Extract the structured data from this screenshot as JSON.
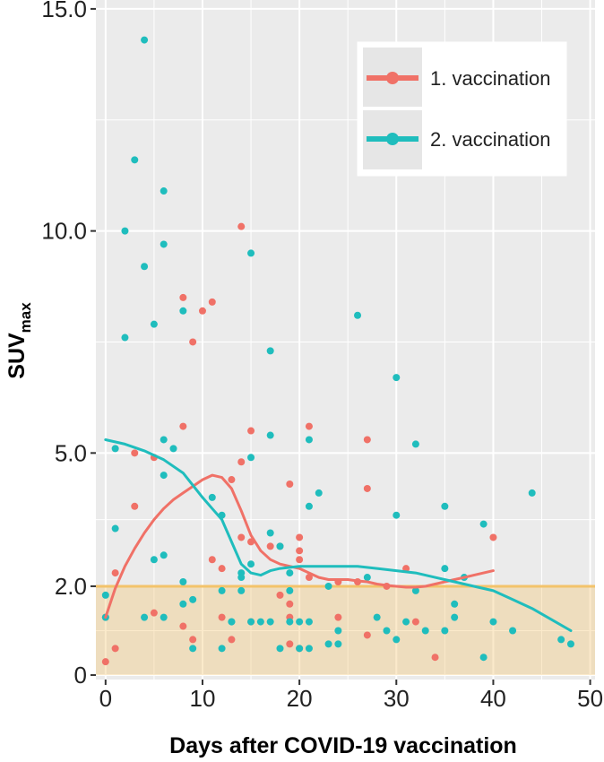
{
  "chart_data": {
    "type": "scatter",
    "xlabel": "Days after COVID-19 vaccination",
    "ylabel_main": "SUV",
    "ylabel_sub": "max",
    "xlim": [
      -1,
      50.5
    ],
    "ylim": [
      -0.1,
      15.2
    ],
    "x_ticks": [
      0,
      10,
      20,
      30,
      40,
      50
    ],
    "x_tick_labels": [
      "0",
      "10",
      "20",
      "30",
      "40",
      "50"
    ],
    "y_ticks": [
      0,
      2,
      5,
      10,
      15
    ],
    "y_tick_labels": [
      "0",
      "2.0",
      "5.0",
      "10.0",
      "15.0"
    ],
    "grid": true,
    "legend_position": "top-right",
    "threshold": {
      "y": 2.0,
      "band": [
        0,
        2.0
      ],
      "color": "#f3c36b"
    },
    "colors": {
      "panel": "#ebebeb",
      "grid": "#ffffff",
      "series1": "#f07167",
      "series2": "#1fbdbd"
    },
    "series": [
      {
        "name": "1. vaccination",
        "color": "#f07167",
        "points": [
          [
            0,
            0.3
          ],
          [
            0,
            1.3
          ],
          [
            1,
            0.6
          ],
          [
            1,
            2.3
          ],
          [
            3,
            3.8
          ],
          [
            3,
            5.0
          ],
          [
            5,
            1.4
          ],
          [
            5,
            4.9
          ],
          [
            8,
            8.5
          ],
          [
            8,
            5.6
          ],
          [
            8,
            1.1
          ],
          [
            9,
            0.8
          ],
          [
            9,
            7.5
          ],
          [
            10,
            8.2
          ],
          [
            11,
            8.4
          ],
          [
            11,
            2.6
          ],
          [
            12,
            1.3
          ],
          [
            12,
            2.4
          ],
          [
            13,
            4.4
          ],
          [
            13,
            0.8
          ],
          [
            14,
            10.1
          ],
          [
            14,
            4.8
          ],
          [
            14,
            3.1
          ],
          [
            15,
            5.5
          ],
          [
            15,
            3.0
          ],
          [
            15,
            1.2
          ],
          [
            17,
            2.9
          ],
          [
            18,
            2.9
          ],
          [
            18,
            1.8
          ],
          [
            19,
            4.3
          ],
          [
            19,
            1.3
          ],
          [
            19,
            0.7
          ],
          [
            19,
            1.6
          ],
          [
            20,
            2.8
          ],
          [
            20,
            3.1
          ],
          [
            20,
            2.6
          ],
          [
            20,
            0.6
          ],
          [
            21,
            5.6
          ],
          [
            21,
            2.2
          ],
          [
            24,
            1.3
          ],
          [
            24,
            2.1
          ],
          [
            26,
            2.1
          ],
          [
            27,
            4.2
          ],
          [
            27,
            5.3
          ],
          [
            27,
            0.9
          ],
          [
            29,
            2.0
          ],
          [
            31,
            2.4
          ],
          [
            32,
            1.2
          ],
          [
            34,
            0.4
          ],
          [
            40,
            3.1
          ]
        ],
        "trend": [
          [
            0,
            1.3
          ],
          [
            1,
            1.95
          ],
          [
            2,
            2.45
          ],
          [
            3,
            2.85
          ],
          [
            4,
            3.2
          ],
          [
            5,
            3.5
          ],
          [
            6,
            3.75
          ],
          [
            7,
            3.95
          ],
          [
            8,
            4.1
          ],
          [
            9,
            4.25
          ],
          [
            10,
            4.4
          ],
          [
            11,
            4.5
          ],
          [
            12,
            4.45
          ],
          [
            13,
            4.2
          ],
          [
            14,
            3.7
          ],
          [
            15,
            3.15
          ],
          [
            16,
            2.8
          ],
          [
            17,
            2.6
          ],
          [
            18,
            2.5
          ],
          [
            19,
            2.45
          ],
          [
            20,
            2.4
          ],
          [
            21,
            2.3
          ],
          [
            22,
            2.2
          ],
          [
            23,
            2.15
          ],
          [
            24,
            2.15
          ],
          [
            25,
            2.15
          ],
          [
            26,
            2.12
          ],
          [
            27,
            2.1
          ],
          [
            28,
            2.05
          ],
          [
            29,
            2.02
          ],
          [
            30,
            2.0
          ],
          [
            31,
            1.98
          ],
          [
            32,
            1.98
          ],
          [
            33,
            2.0
          ],
          [
            34,
            2.05
          ],
          [
            35,
            2.1
          ],
          [
            36,
            2.15
          ],
          [
            37,
            2.2
          ],
          [
            38,
            2.25
          ],
          [
            39,
            2.3
          ],
          [
            40,
            2.35
          ]
        ]
      },
      {
        "name": "2. vaccination",
        "color": "#1fbdbd",
        "points": [
          [
            0,
            1.3
          ],
          [
            0,
            1.8
          ],
          [
            1,
            5.1
          ],
          [
            1,
            3.3
          ],
          [
            2,
            10.0
          ],
          [
            2,
            7.6
          ],
          [
            3,
            11.6
          ],
          [
            4,
            14.3
          ],
          [
            4,
            9.2
          ],
          [
            4,
            1.3
          ],
          [
            5,
            7.9
          ],
          [
            5,
            2.6
          ],
          [
            6,
            10.9
          ],
          [
            6,
            9.7
          ],
          [
            6,
            5.3
          ],
          [
            6,
            4.5
          ],
          [
            6,
            2.7
          ],
          [
            6,
            1.3
          ],
          [
            7,
            5.1
          ],
          [
            8,
            8.2
          ],
          [
            8,
            2.1
          ],
          [
            8,
            1.6
          ],
          [
            9,
            0.6
          ],
          [
            9,
            1.7
          ],
          [
            11,
            4.0
          ],
          [
            12,
            1.9
          ],
          [
            12,
            0.6
          ],
          [
            12,
            3.6
          ],
          [
            13,
            1.2
          ],
          [
            13,
            1.2
          ],
          [
            14,
            2.3
          ],
          [
            14,
            1.9
          ],
          [
            14,
            2.2
          ],
          [
            15,
            9.5
          ],
          [
            15,
            4.9
          ],
          [
            15,
            1.2
          ],
          [
            15,
            2.5
          ],
          [
            16,
            1.2
          ],
          [
            17,
            7.3
          ],
          [
            17,
            5.4
          ],
          [
            17,
            3.2
          ],
          [
            17,
            1.2
          ],
          [
            18,
            2.9
          ],
          [
            18,
            0.6
          ],
          [
            19,
            1.2
          ],
          [
            19,
            2.3
          ],
          [
            19,
            1.9
          ],
          [
            20,
            0.6
          ],
          [
            20,
            1.2
          ],
          [
            21,
            3.8
          ],
          [
            21,
            5.3
          ],
          [
            21,
            1.2
          ],
          [
            21,
            0.6
          ],
          [
            22,
            4.1
          ],
          [
            23,
            0.7
          ],
          [
            23,
            2.0
          ],
          [
            24,
            0.7
          ],
          [
            24,
            1.0
          ],
          [
            26,
            8.1
          ],
          [
            27,
            2.2
          ],
          [
            28,
            1.3
          ],
          [
            29,
            1.0
          ],
          [
            30,
            6.7
          ],
          [
            30,
            3.6
          ],
          [
            30,
            0.8
          ],
          [
            31,
            1.2
          ],
          [
            32,
            5.2
          ],
          [
            32,
            1.9
          ],
          [
            33,
            1.0
          ],
          [
            35,
            3.8
          ],
          [
            35,
            2.4
          ],
          [
            35,
            1.0
          ],
          [
            36,
            1.6
          ],
          [
            36,
            1.3
          ],
          [
            37,
            2.2
          ],
          [
            39,
            3.4
          ],
          [
            39,
            0.4
          ],
          [
            40,
            1.2
          ],
          [
            42,
            1.0
          ],
          [
            44,
            4.1
          ],
          [
            47,
            0.8
          ],
          [
            48,
            0.7
          ]
        ],
        "trend": [
          [
            0,
            5.3
          ],
          [
            2,
            5.2
          ],
          [
            4,
            5.05
          ],
          [
            6,
            4.85
          ],
          [
            8,
            4.55
          ],
          [
            10,
            4.0
          ],
          [
            11,
            3.75
          ],
          [
            12,
            3.5
          ],
          [
            13,
            3.0
          ],
          [
            14,
            2.5
          ],
          [
            15,
            2.3
          ],
          [
            16,
            2.25
          ],
          [
            17,
            2.35
          ],
          [
            18,
            2.4
          ],
          [
            20,
            2.45
          ],
          [
            22,
            2.45
          ],
          [
            24,
            2.45
          ],
          [
            26,
            2.45
          ],
          [
            28,
            2.4
          ],
          [
            30,
            2.35
          ],
          [
            32,
            2.3
          ],
          [
            34,
            2.2
          ],
          [
            36,
            2.1
          ],
          [
            38,
            2.0
          ],
          [
            40,
            1.9
          ],
          [
            42,
            1.7
          ],
          [
            44,
            1.5
          ],
          [
            46,
            1.25
          ],
          [
            48,
            1.0
          ]
        ]
      }
    ]
  }
}
